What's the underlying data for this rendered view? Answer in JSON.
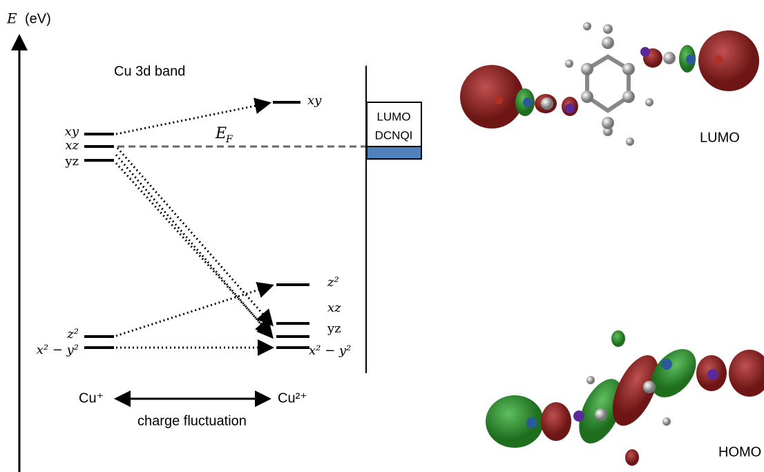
{
  "axis": {
    "symbol": "E",
    "unit": "(eV)"
  },
  "band_title": "Cu 3d band",
  "left_levels": [
    "xy",
    "xz",
    "yz",
    "z²",
    "x² − y²"
  ],
  "right_levels": [
    "xy",
    "z²",
    "xz",
    "yz",
    "x² − y²"
  ],
  "fermi": {
    "symbol": "E",
    "subscript": "F"
  },
  "box": [
    "LUMO",
    "DCNQI"
  ],
  "fluctuation": {
    "left": "Cu⁺",
    "right": "Cu²⁺",
    "label": "charge fluctuation"
  },
  "orbitals": {
    "lumo": "LUMO",
    "homo": "HOMO"
  }
}
